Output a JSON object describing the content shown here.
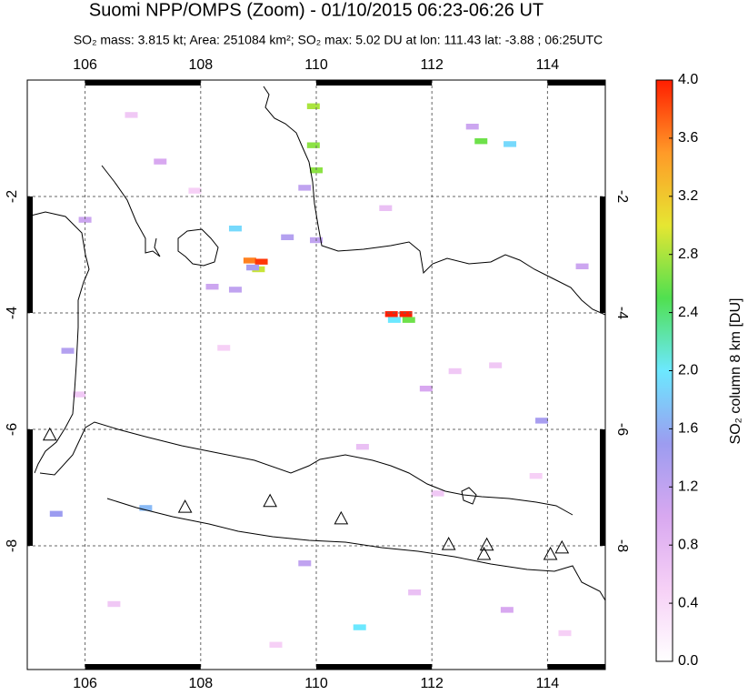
{
  "chart_data": {
    "type": "map",
    "title": "Suomi NPP/OMPS (Zoom) - 01/10/2015 06:23-06:26 UT",
    "subtitle": "SO₂ mass: 3.815 kt; Area: 251084 km²; SO₂ max: 5.02 DU at lon: 111.43 lat: -3.88 ; 06:25UTC",
    "colorbar_label": "SO₂ column 8 km [DU]",
    "xlim": [
      105,
      115
    ],
    "xticks": [
      106,
      108,
      110,
      112,
      114
    ],
    "ylim": [
      -10.125,
      0
    ],
    "yticks": [
      -2,
      -4,
      -6,
      -8
    ],
    "grid": true,
    "clim": [
      0,
      4
    ],
    "cticks": [
      {
        "value": 0,
        "label": "0.0"
      },
      0.4,
      0.8,
      1.2,
      1.6,
      {
        "value": 2,
        "label": "2.0"
      },
      2.4,
      2.8,
      3.2,
      3.6,
      {
        "value": 4,
        "label": "4.0"
      }
    ],
    "colorscale": [
      "#ffffff",
      "#f6d0f6",
      "#d8a8f0",
      "#9c9cf0",
      "#6ce8ff",
      "#50e050",
      "#e6e632",
      "#ff9a28",
      "#ff1e00"
    ],
    "pixels": {
      "lon": [
        108.85,
        109.05,
        109.0,
        108.9,
        111.3,
        111.55,
        111.35,
        111.6,
        109.95,
        109.95,
        110.0,
        112.85,
        113.35,
        110.75,
        109.8,
        108.6,
        109.5,
        110.0,
        108.2,
        108.6,
        111.9,
        113.9,
        106.0,
        105.5,
        107.05,
        112.7,
        107.3,
        105.7,
        109.8,
        113.3,
        114.6,
        106.8,
        107.9,
        111.2,
        112.4,
        113.8,
        105.9,
        108.4,
        110.8,
        112.1,
        114.3,
        106.5,
        109.3,
        111.7,
        113.1
      ],
      "lat": [
        -3.1,
        -3.12,
        -3.25,
        -3.22,
        -4.02,
        -4.02,
        -4.12,
        -4.12,
        -0.45,
        -1.12,
        -1.55,
        -1.05,
        -1.1,
        -9.4,
        -1.85,
        -2.55,
        -2.7,
        -2.75,
        -3.55,
        -3.6,
        -5.3,
        -5.85,
        -2.4,
        -7.45,
        -7.35,
        -0.8,
        -1.4,
        -4.65,
        -8.3,
        -9.1,
        -3.2,
        -0.6,
        -1.9,
        -2.2,
        -5.0,
        -6.8,
        -5.4,
        -4.6,
        -6.3,
        -7.1,
        -9.5,
        -9.0,
        -9.7,
        -8.8,
        -4.9
      ],
      "values": [
        3.6,
        3.9,
        2.9,
        1.4,
        4.0,
        4.0,
        2.0,
        2.6,
        2.8,
        2.7,
        2.7,
        2.6,
        1.9,
        2.0,
        1.2,
        1.9,
        1.3,
        1.2,
        1.1,
        1.2,
        1.0,
        1.4,
        1.1,
        1.5,
        1.7,
        1.1,
        1.0,
        1.3,
        1.2,
        1.0,
        1.1,
        0.6,
        0.5,
        0.7,
        0.6,
        0.5,
        0.6,
        0.5,
        0.7,
        0.6,
        0.5,
        0.6,
        0.5,
        0.7,
        0.6
      ]
    },
    "volcanoes": {
      "lon": [
        105.39,
        107.73,
        109.2,
        110.43,
        112.29,
        112.95,
        112.9,
        114.05,
        114.25
      ],
      "lat": [
        -6.09,
        -7.33,
        -7.23,
        -7.53,
        -7.97,
        -7.98,
        -8.14,
        -8.14,
        -8.03
      ]
    }
  }
}
